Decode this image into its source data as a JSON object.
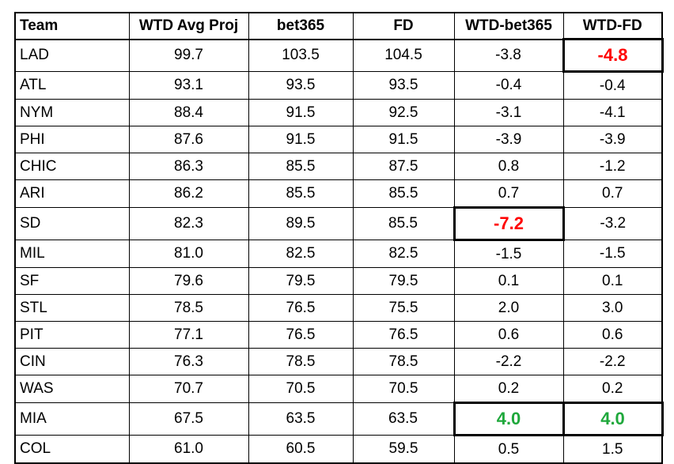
{
  "columns": [
    "Team",
    "WTD Avg Proj",
    "bet365",
    "FD",
    "WTD-bet365",
    "WTD-FD"
  ],
  "rows": [
    {
      "team": "LAD",
      "wtd": "99.7",
      "bet365": "103.5",
      "fd": "104.5",
      "wtd_bet365": "-3.8",
      "wtd_fd": "-4.8"
    },
    {
      "team": "ATL",
      "wtd": "93.1",
      "bet365": "93.5",
      "fd": "93.5",
      "wtd_bet365": "-0.4",
      "wtd_fd": "-0.4"
    },
    {
      "team": "NYM",
      "wtd": "88.4",
      "bet365": "91.5",
      "fd": "92.5",
      "wtd_bet365": "-3.1",
      "wtd_fd": "-4.1"
    },
    {
      "team": "PHI",
      "wtd": "87.6",
      "bet365": "91.5",
      "fd": "91.5",
      "wtd_bet365": "-3.9",
      "wtd_fd": "-3.9"
    },
    {
      "team": "CHIC",
      "wtd": "86.3",
      "bet365": "85.5",
      "fd": "87.5",
      "wtd_bet365": "0.8",
      "wtd_fd": "-1.2"
    },
    {
      "team": "ARI",
      "wtd": "86.2",
      "bet365": "85.5",
      "fd": "85.5",
      "wtd_bet365": "0.7",
      "wtd_fd": "0.7"
    },
    {
      "team": "SD",
      "wtd": "82.3",
      "bet365": "89.5",
      "fd": "85.5",
      "wtd_bet365": "-7.2",
      "wtd_fd": "-3.2"
    },
    {
      "team": "MIL",
      "wtd": "81.0",
      "bet365": "82.5",
      "fd": "82.5",
      "wtd_bet365": "-1.5",
      "wtd_fd": "-1.5"
    },
    {
      "team": "SF",
      "wtd": "79.6",
      "bet365": "79.5",
      "fd": "79.5",
      "wtd_bet365": "0.1",
      "wtd_fd": "0.1"
    },
    {
      "team": "STL",
      "wtd": "78.5",
      "bet365": "76.5",
      "fd": "75.5",
      "wtd_bet365": "2.0",
      "wtd_fd": "3.0"
    },
    {
      "team": "PIT",
      "wtd": "77.1",
      "bet365": "76.5",
      "fd": "76.5",
      "wtd_bet365": "0.6",
      "wtd_fd": "0.6"
    },
    {
      "team": "CIN",
      "wtd": "76.3",
      "bet365": "78.5",
      "fd": "78.5",
      "wtd_bet365": "-2.2",
      "wtd_fd": "-2.2"
    },
    {
      "team": "WAS",
      "wtd": "70.7",
      "bet365": "70.5",
      "fd": "70.5",
      "wtd_bet365": "0.2",
      "wtd_fd": "0.2"
    },
    {
      "team": "MIA",
      "wtd": "67.5",
      "bet365": "63.5",
      "fd": "63.5",
      "wtd_bet365": "4.0",
      "wtd_fd": "4.0"
    },
    {
      "team": "COL",
      "wtd": "61.0",
      "bet365": "60.5",
      "fd": "59.5",
      "wtd_bet365": "0.5",
      "wtd_fd": "1.5"
    }
  ],
  "colors": {
    "highlight_negative": "#ff0000",
    "highlight_positive": "#1fa83c"
  }
}
